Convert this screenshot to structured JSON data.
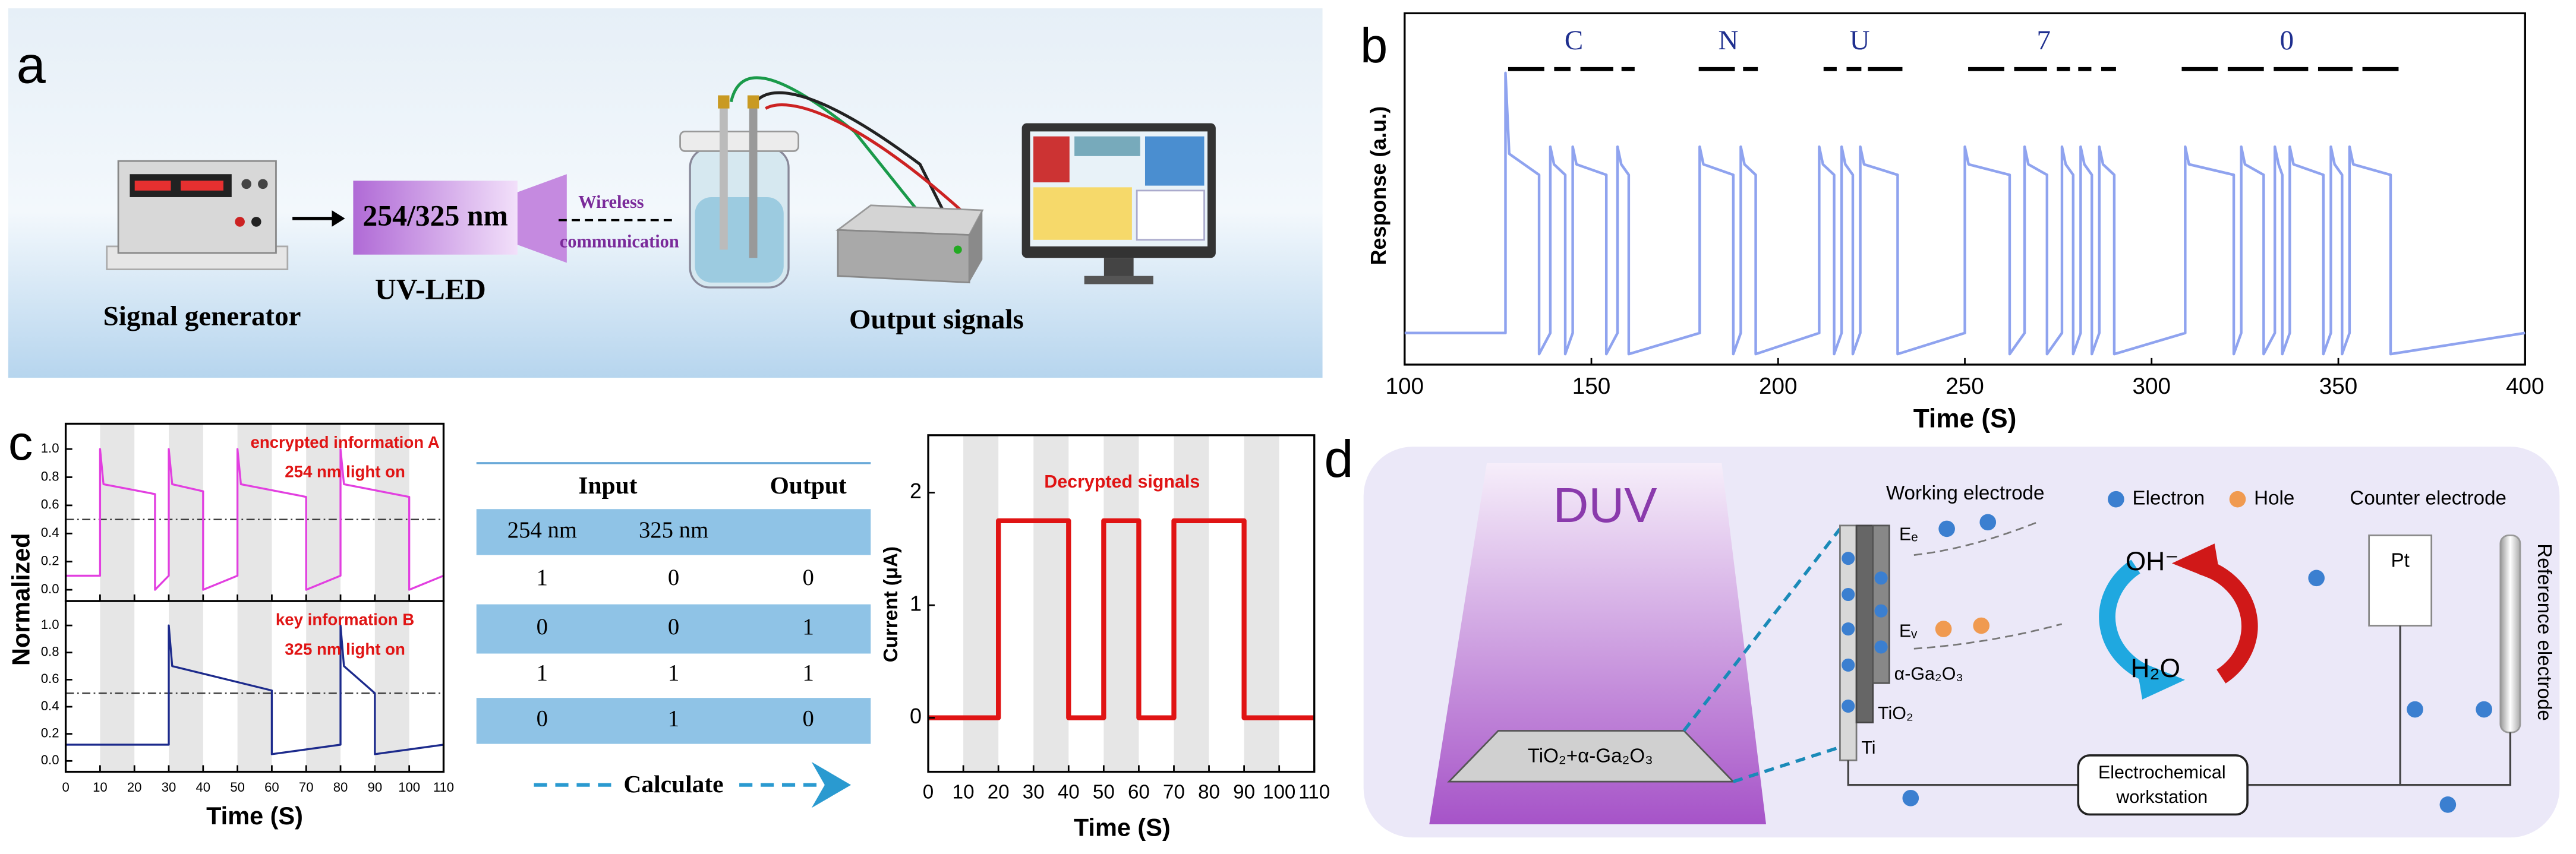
{
  "panel_a": {
    "label": "a",
    "signal_generator": "Signal generator",
    "wavelength": "254/325 nm",
    "uv_led": "UV-LED",
    "wireless": "Wireless",
    "communication": "communication",
    "output": "Output signals"
  },
  "panel_b": {
    "label": "b"
  },
  "panel_c": {
    "label": "c",
    "table": {
      "header": [
        "Input",
        "Output"
      ],
      "subheader": [
        "254 nm",
        "325 nm"
      ],
      "rows": [
        [
          1,
          0,
          0
        ],
        [
          0,
          0,
          1
        ],
        [
          1,
          1,
          1
        ],
        [
          0,
          1,
          0
        ]
      ]
    },
    "calculate": "Calculate"
  },
  "panel_d": {
    "label": "d",
    "light": "DUV",
    "film": "TiO₂+α-Ga₂O₃",
    "working": "Working electrode",
    "ee": "Eₑ",
    "ev": "Eᵥ",
    "ga2o3": "α-Ga₂O₃",
    "tio2": "TiO₂",
    "ti": "Ti",
    "electron": "Electron",
    "hole": "Hole",
    "counter": "Counter electrode",
    "pt": "Pt",
    "reference": "Reference electrode",
    "oh": "OH⁻",
    "h2o": "H₂O",
    "workstation": [
      "Electrochemical",
      "workstation"
    ]
  },
  "chart_data": [
    {
      "type": "line",
      "xlabel": "Time (S)",
      "ylabel": "Response (a.u.)",
      "xlim": [
        100,
        400
      ],
      "xticks": [
        100,
        150,
        200,
        250,
        300,
        350,
        400
      ],
      "ylim": [
        0,
        1
      ],
      "annotations": [
        "C",
        "N",
        "U",
        "7",
        "0"
      ],
      "series": [
        {
          "color": "#8fa3ef",
          "x": [
            100,
            127,
            127,
            128,
            136,
            136,
            139,
            139,
            140,
            143,
            143,
            145,
            145,
            146,
            154,
            154,
            157,
            157,
            158,
            160,
            160,
            179,
            179,
            180,
            188,
            188,
            190,
            190,
            191,
            194,
            194,
            211,
            211,
            212,
            215,
            215,
            217,
            217,
            218,
            220,
            220,
            222,
            222,
            223,
            232,
            232,
            250,
            250,
            251,
            262,
            262,
            266,
            266,
            267,
            272,
            272,
            276,
            276,
            277,
            279,
            279,
            281,
            281,
            282,
            284,
            284,
            286,
            286,
            287,
            290,
            290,
            309,
            309,
            310,
            322,
            322,
            324,
            324,
            325,
            330,
            330,
            333,
            333,
            334,
            335,
            335,
            337,
            337,
            338,
            346,
            346,
            348,
            348,
            349,
            351,
            351,
            353,
            353,
            354,
            364,
            364,
            400
          ],
          "values": [
            0.09,
            0.09,
            0.83,
            0.6,
            0.54,
            0.03,
            0.09,
            0.62,
            0.57,
            0.54,
            0.03,
            0.09,
            0.62,
            0.57,
            0.54,
            0.03,
            0.09,
            0.62,
            0.57,
            0.54,
            0.03,
            0.09,
            0.62,
            0.57,
            0.54,
            0.03,
            0.09,
            0.62,
            0.57,
            0.54,
            0.03,
            0.09,
            0.62,
            0.57,
            0.54,
            0.03,
            0.09,
            0.62,
            0.57,
            0.54,
            0.03,
            0.09,
            0.62,
            0.57,
            0.54,
            0.03,
            0.09,
            0.62,
            0.57,
            0.54,
            0.03,
            0.09,
            0.62,
            0.57,
            0.54,
            0.03,
            0.09,
            0.62,
            0.57,
            0.54,
            0.03,
            0.09,
            0.62,
            0.57,
            0.54,
            0.03,
            0.09,
            0.62,
            0.57,
            0.54,
            0.03,
            0.09,
            0.62,
            0.57,
            0.54,
            0.03,
            0.09,
            0.62,
            0.57,
            0.54,
            0.03,
            0.09,
            0.62,
            0.57,
            0.54,
            0.03,
            0.09,
            0.62,
            0.57,
            0.54,
            0.03,
            0.09,
            0.62,
            0.57,
            0.54,
            0.03,
            0.09,
            0.62,
            0.57,
            0.54,
            0.03,
            0.09
          ]
        }
      ]
    },
    {
      "type": "line",
      "xlabel": "Time (S)",
      "ylabel": "Normalized",
      "xlim": [
        0,
        110
      ],
      "xticks": [
        0,
        10,
        20,
        30,
        40,
        50,
        60,
        70,
        80,
        90,
        100,
        110
      ],
      "ylim": [
        -0.08,
        1.18
      ],
      "yticks": [
        {
          "value": 0,
          "label": "0.0"
        },
        {
          "value": 0.2,
          "label": "0.2"
        },
        {
          "value": 0.4,
          "label": "0.4"
        },
        {
          "value": 0.6,
          "label": "0.6"
        },
        {
          "value": 0.8,
          "label": "0.8"
        },
        {
          "value": 1,
          "label": "1.0"
        }
      ],
      "shaded": [
        [
          10,
          20
        ],
        [
          30,
          40
        ],
        [
          50,
          60
        ],
        [
          70,
          80
        ],
        [
          90,
          100
        ]
      ],
      "threshold": 0.5,
      "series": [
        {
          "name": "encrypted information A",
          "condition": "254 nm light on",
          "color": "#e23fe0",
          "x": [
            0,
            10,
            10,
            11,
            26,
            26,
            30,
            30,
            31,
            40,
            40,
            50,
            50,
            51,
            70,
            70,
            80,
            80,
            81,
            100,
            100,
            110
          ],
          "values": [
            0.1,
            0.1,
            1.0,
            0.75,
            0.68,
            0.0,
            0.1,
            1.0,
            0.75,
            0.7,
            0.0,
            0.1,
            1.0,
            0.75,
            0.66,
            0.0,
            0.1,
            1.0,
            0.75,
            0.66,
            0.0,
            0.1
          ]
        },
        {
          "name": "key information B",
          "condition": "325 nm light on",
          "color": "#1c2a8c",
          "x": [
            0,
            30,
            30,
            31,
            60,
            60,
            80,
            80,
            81,
            90,
            90,
            110
          ],
          "values": [
            0.12,
            0.12,
            1.0,
            0.7,
            0.52,
            0.05,
            0.12,
            1.0,
            0.7,
            0.5,
            0.05,
            0.12
          ]
        }
      ]
    },
    {
      "type": "line",
      "title": "Decrypted signals",
      "xlabel": "Time (S)",
      "ylabel": "Current (μA)",
      "xlim": [
        0,
        110
      ],
      "xticks": [
        0,
        10,
        20,
        30,
        40,
        50,
        60,
        70,
        80,
        90,
        100,
        110
      ],
      "ylim": [
        -0.48,
        2.51
      ],
      "yticks": [
        0,
        1,
        2
      ],
      "shaded": [
        [
          10,
          20
        ],
        [
          30,
          40
        ],
        [
          50,
          60
        ],
        [
          70,
          80
        ],
        [
          90,
          100
        ]
      ],
      "series": [
        {
          "color": "#e01414",
          "x": [
            0,
            20,
            20,
            40,
            40,
            50,
            50,
            60,
            60,
            70,
            70,
            90,
            90,
            110
          ],
          "values": [
            0,
            0,
            1.75,
            1.75,
            0,
            0,
            1.75,
            1.75,
            0,
            0,
            1.75,
            1.75,
            0,
            0
          ]
        }
      ]
    }
  ]
}
